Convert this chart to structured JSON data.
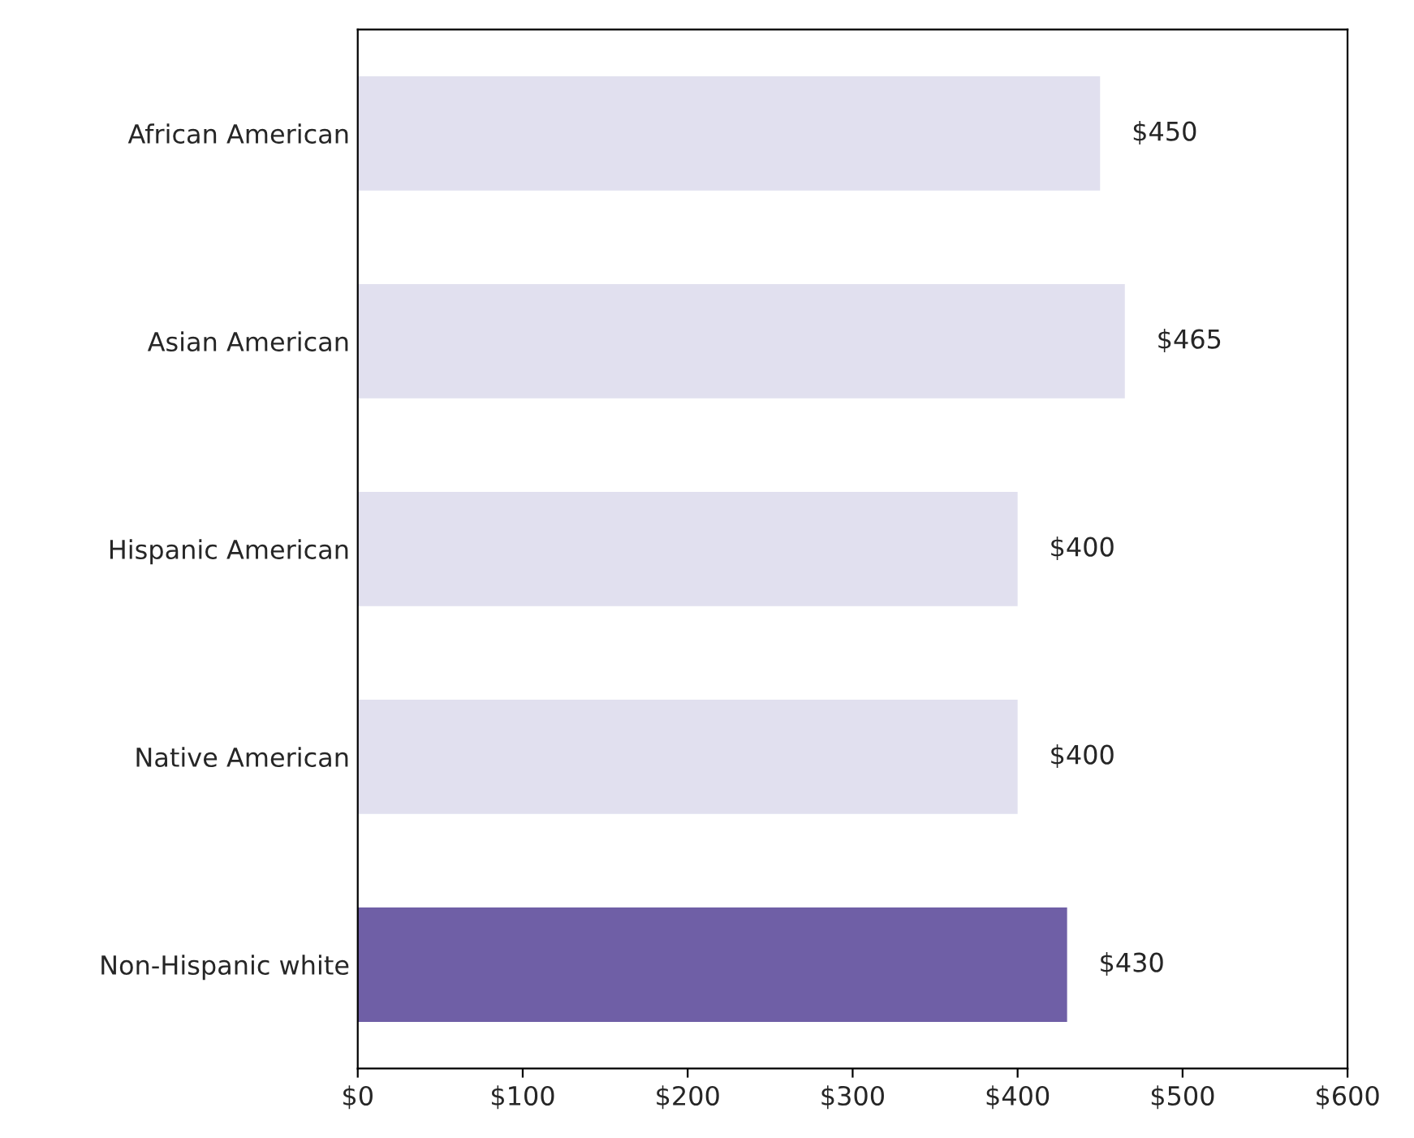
{
  "chart_data": {
    "type": "bar",
    "orientation": "horizontal",
    "categories": [
      "African American",
      "Asian American",
      "Hispanic American",
      "Native American",
      "Non-Hispanic white"
    ],
    "values": [
      450,
      465,
      400,
      400,
      430
    ],
    "colors": [
      "#e1e0ef",
      "#e1e0ef",
      "#e1e0ef",
      "#e1e0ef",
      "#6f5fa6"
    ],
    "value_labels": [
      "$450",
      "$465",
      "$400",
      "$400",
      "$430"
    ],
    "xlim": [
      0,
      600
    ],
    "xticks": [
      {
        "value": 0,
        "label": "$0"
      },
      {
        "value": 100,
        "label": "$100"
      },
      {
        "value": 200,
        "label": "$200"
      },
      {
        "value": 300,
        "label": "$300"
      },
      {
        "value": 400,
        "label": "$400"
      },
      {
        "value": 500,
        "label": "$500"
      },
      {
        "value": 600,
        "label": "$600"
      }
    ],
    "grid": false,
    "legend": false
  }
}
